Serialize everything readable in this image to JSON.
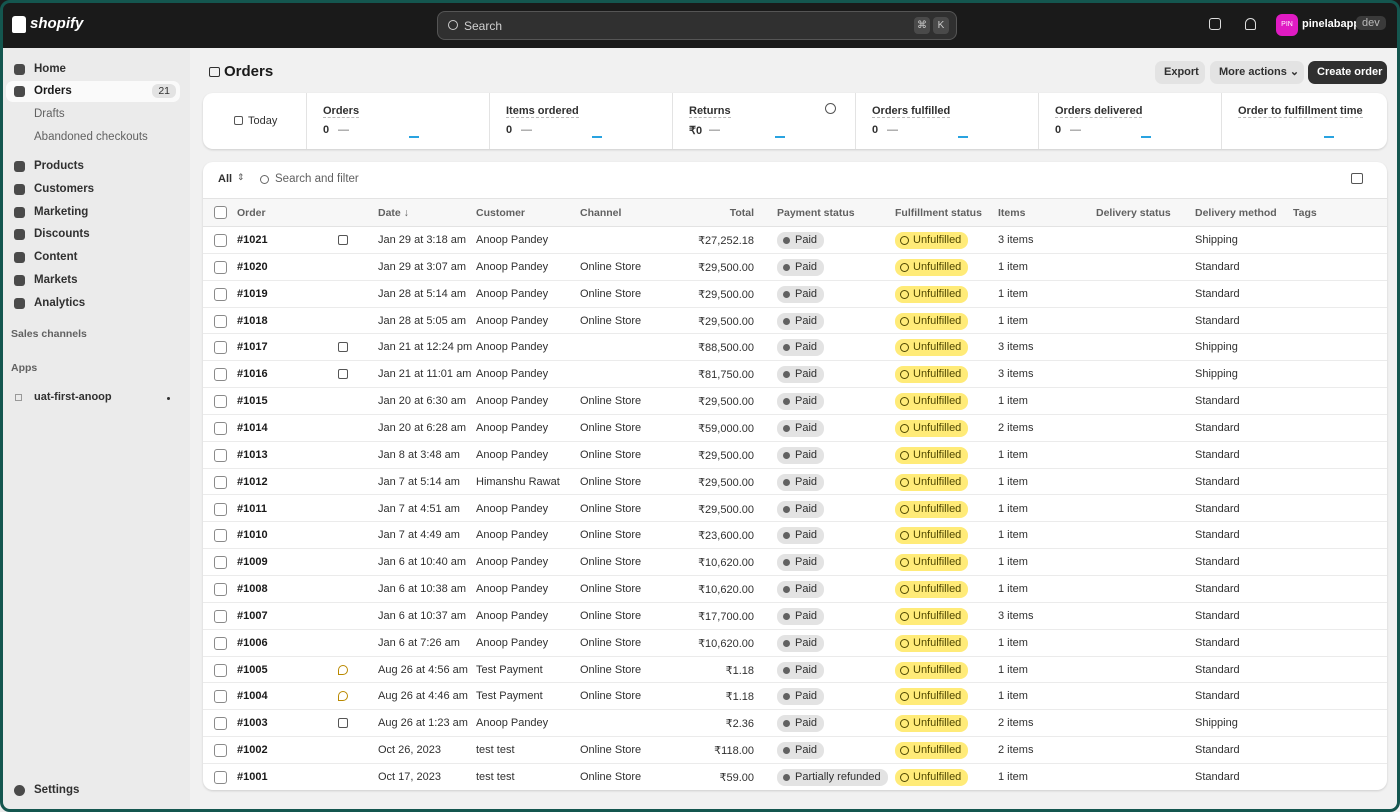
{
  "topbar": {
    "brand": "shopify",
    "search": "Search",
    "shortcut": [
      "⌘",
      "K"
    ],
    "avatar": "PIN",
    "store": "pinelabapp",
    "badge": "dev"
  },
  "sidebar": {
    "nav": [
      {
        "label": "Home"
      },
      {
        "label": "Orders",
        "count": 21
      },
      {
        "label": "Drafts"
      },
      {
        "label": "Abandoned checkouts"
      },
      {
        "label": "Products"
      },
      {
        "label": "Customers"
      },
      {
        "label": "Marketing"
      },
      {
        "label": "Discounts"
      },
      {
        "label": "Content"
      },
      {
        "label": "Markets"
      },
      {
        "label": "Analytics"
      }
    ],
    "sales_channels": "Sales channels",
    "apps": "Apps",
    "app_items": [
      "uat-first-anoop"
    ],
    "settings": "Settings"
  },
  "header": {
    "title": "Orders",
    "buttons": [
      "Export",
      "More actions",
      "Create order"
    ]
  },
  "metrics": {
    "period": "Today",
    "items": [
      {
        "label": "Orders",
        "value": 0,
        "change": "—"
      },
      {
        "label": "Items ordered",
        "value": 0,
        "change": "—"
      },
      {
        "label": "Returns",
        "value": "₹0",
        "change": "—"
      },
      {
        "label": "Orders fulfilled",
        "value": 0,
        "change": "—"
      },
      {
        "label": "Orders delivered",
        "value": 0,
        "change": "—"
      },
      {
        "label": "Order to fulfillment time"
      }
    ]
  },
  "filters": {
    "tab": "All",
    "search": "Search and filter"
  },
  "table": {
    "columns": [
      "Order",
      "Date ↓",
      "Customer",
      "Channel",
      "Total",
      "Payment status",
      "Fulfillment status",
      "Items",
      "Delivery status",
      "Delivery method",
      "Tags"
    ],
    "rows": [
      [
        "#1021",
        "Jan 29 at 3:18 am",
        "Anoop Pandey",
        null,
        "₹27,252.18",
        "Paid",
        "Unfulfilled",
        "3 items",
        "Shipping"
      ],
      [
        "#1020",
        "Jan 29 at 3:07 am",
        "Anoop Pandey",
        "Online Store",
        "₹29,500.00",
        "Paid",
        "Unfulfilled",
        "1 item",
        "Standard"
      ],
      [
        "#1019",
        "Jan 28 at 5:14 am",
        "Anoop Pandey",
        "Online Store",
        "₹29,500.00",
        "Paid",
        "Unfulfilled",
        "1 item",
        "Standard"
      ],
      [
        "#1018",
        "Jan 28 at 5:05 am",
        "Anoop Pandey",
        "Online Store",
        "₹29,500.00",
        "Paid",
        "Unfulfilled",
        "1 item",
        "Standard"
      ],
      [
        "#1017",
        "Jan 21 at 12:24 pm",
        "Anoop Pandey",
        null,
        "₹88,500.00",
        "Paid",
        "Unfulfilled",
        "3 items",
        "Shipping"
      ],
      [
        "#1016",
        "Jan 21 at 11:01 am",
        "Anoop Pandey",
        null,
        "₹81,750.00",
        "Paid",
        "Unfulfilled",
        "3 items",
        "Shipping"
      ],
      [
        "#1015",
        "Jan 20 at 6:30 am",
        "Anoop Pandey",
        "Online Store",
        "₹29,500.00",
        "Paid",
        "Unfulfilled",
        "1 item",
        "Standard"
      ],
      [
        "#1014",
        "Jan 20 at 6:28 am",
        "Anoop Pandey",
        "Online Store",
        "₹59,000.00",
        "Paid",
        "Unfulfilled",
        "2 items",
        "Standard"
      ],
      [
        "#1013",
        "Jan 8 at 3:48 am",
        "Anoop Pandey",
        "Online Store",
        "₹29,500.00",
        "Paid",
        "Unfulfilled",
        "1 item",
        "Standard"
      ],
      [
        "#1012",
        "Jan 7 at 5:14 am",
        "Himanshu Rawat",
        "Online Store",
        "₹29,500.00",
        "Paid",
        "Unfulfilled",
        "1 item",
        "Standard"
      ],
      [
        "#1011",
        "Jan 7 at 4:51 am",
        "Anoop Pandey",
        "Online Store",
        "₹29,500.00",
        "Paid",
        "Unfulfilled",
        "1 item",
        "Standard"
      ],
      [
        "#1010",
        "Jan 7 at 4:49 am",
        "Anoop Pandey",
        "Online Store",
        "₹23,600.00",
        "Paid",
        "Unfulfilled",
        "1 item",
        "Standard"
      ],
      [
        "#1009",
        "Jan 6 at 10:40 am",
        "Anoop Pandey",
        "Online Store",
        "₹10,620.00",
        "Paid",
        "Unfulfilled",
        "1 item",
        "Standard"
      ],
      [
        "#1008",
        "Jan 6 at 10:38 am",
        "Anoop Pandey",
        "Online Store",
        "₹10,620.00",
        "Paid",
        "Unfulfilled",
        "1 item",
        "Standard"
      ],
      [
        "#1007",
        "Jan 6 at 10:37 am",
        "Anoop Pandey",
        "Online Store",
        "₹17,700.00",
        "Paid",
        "Unfulfilled",
        "3 items",
        "Standard"
      ],
      [
        "#1006",
        "Jan 6 at 7:26 am",
        "Anoop Pandey",
        "Online Store",
        "₹10,620.00",
        "Paid",
        "Unfulfilled",
        "1 item",
        "Standard"
      ],
      [
        "#1005",
        "Aug 26 at 4:56 am",
        "Test Payment",
        "Online Store",
        "₹1.18",
        "Paid",
        "Unfulfilled",
        "1 item",
        "Standard"
      ],
      [
        "#1004",
        "Aug 26 at 4:46 am",
        "Test Payment",
        "Online Store",
        "₹1.18",
        "Paid",
        "Unfulfilled",
        "1 item",
        "Standard"
      ],
      [
        "#1003",
        "Aug 26 at 1:23 am",
        "Anoop Pandey",
        null,
        "₹2.36",
        "Paid",
        "Unfulfilled",
        "2 items",
        "Shipping"
      ],
      [
        "#1002",
        "Oct 26, 2023",
        "test test",
        "Online Store",
        "₹118.00",
        "Paid",
        "Unfulfilled",
        "2 items",
        "Standard"
      ],
      [
        "#1001",
        "Oct 17, 2023",
        "test test",
        "Online Store",
        "₹59.00",
        "Partially refunded",
        "Unfulfilled",
        "1 item",
        "Standard"
      ]
    ]
  }
}
